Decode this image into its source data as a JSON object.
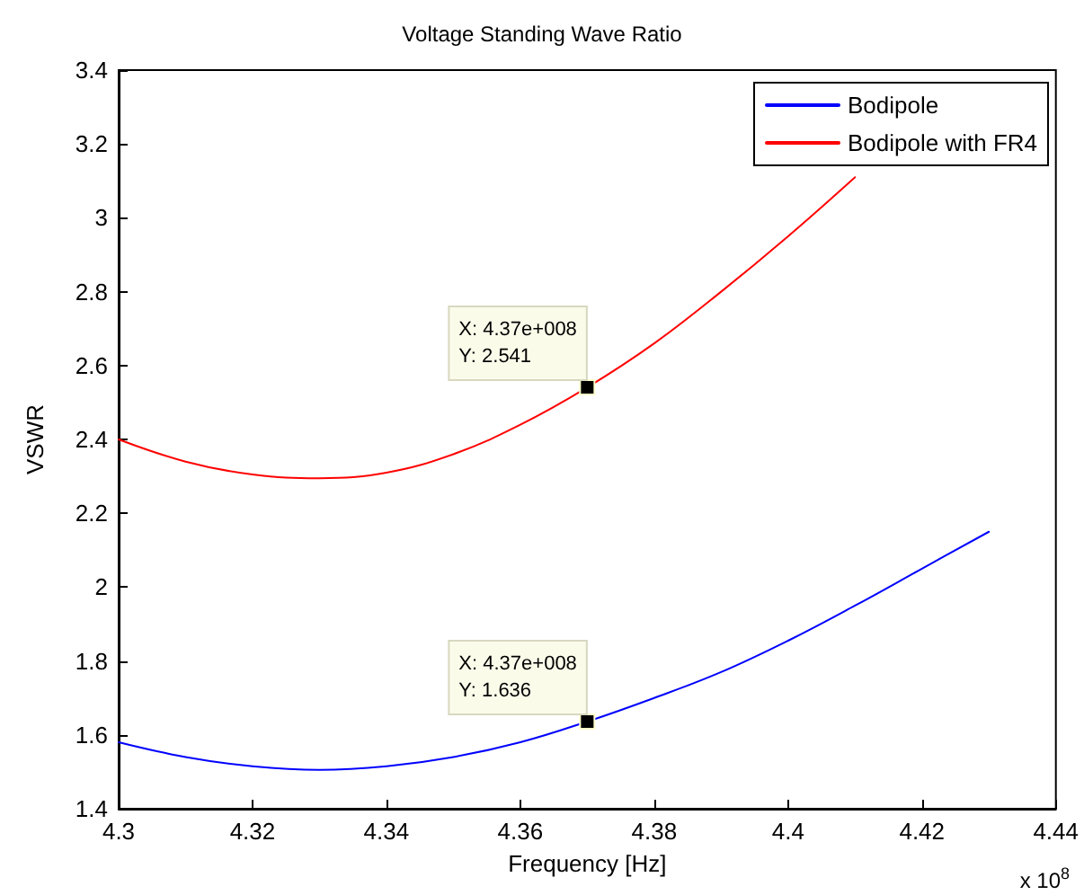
{
  "chart_data": {
    "type": "line",
    "title": "Voltage Standing Wave Ratio",
    "xlabel": "Frequency [Hz]",
    "ylabel": "VSWR",
    "x": [
      4.3,
      4.31,
      4.32,
      4.33,
      4.34,
      4.35,
      4.36,
      4.37,
      4.38,
      4.39,
      4.4,
      4.41,
      4.42,
      4.43
    ],
    "series": [
      {
        "name": "Bodipole",
        "color": "#0000ff",
        "values": [
          1.58,
          1.54,
          1.515,
          1.505,
          1.515,
          1.54,
          1.58,
          1.636,
          1.7,
          1.77,
          1.855,
          1.95,
          2.05,
          2.15
        ]
      },
      {
        "name": "Bodipole with FR4",
        "color": "#ff0000",
        "values": [
          2.4,
          2.34,
          2.305,
          2.295,
          2.31,
          2.36,
          2.44,
          2.541,
          2.66,
          2.8,
          2.95,
          3.11,
          null,
          null
        ]
      }
    ],
    "xlim": [
      4.3,
      4.44
    ],
    "xticks": [
      4.3,
      4.32,
      4.34,
      4.36,
      4.38,
      4.4,
      4.42,
      4.44
    ],
    "ylim": [
      1.4,
      3.4
    ],
    "yticks": [
      1.4,
      1.6,
      1.8,
      2,
      2.2,
      2.4,
      2.6,
      2.8,
      3,
      3.2,
      3.4
    ],
    "annotations": [
      {
        "text": "X: 4.37e+008\nY: 2.541",
        "x": 4.37,
        "y": 2.541
      },
      {
        "text": "X: 4.37e+008\nY: 1.636",
        "x": 4.37,
        "y": 1.636
      },
      "x 10$^{8}$"
    ],
    "grid": false,
    "legend": "top right",
    "marker": "none",
    "line_style": "solid"
  }
}
